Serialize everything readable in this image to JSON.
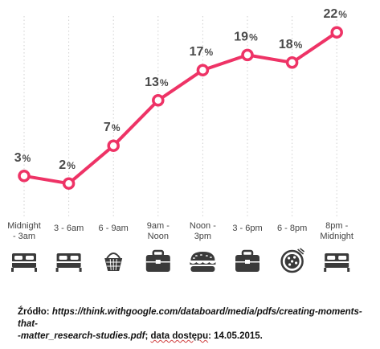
{
  "chart_data": {
    "type": "line",
    "categories": [
      "Midnight - 3am",
      "3 - 6am",
      "6 - 9am",
      "9am - Noon",
      "Noon - 3pm",
      "3 - 6pm",
      "6 - 8pm",
      "8pm - Midnight"
    ],
    "category_lines": [
      [
        "Midnight",
        "- 3am"
      ],
      [
        "3 - 6am"
      ],
      [
        "6 - 9am"
      ],
      [
        "9am -",
        "Noon"
      ],
      [
        "Noon -",
        "3pm"
      ],
      [
        "3 - 6pm"
      ],
      [
        "6 - 8pm"
      ],
      [
        "8pm -",
        "Midnight"
      ]
    ],
    "series": [
      {
        "values": [
          3,
          2,
          7,
          13,
          17,
          19,
          18,
          22
        ]
      }
    ],
    "value_unit": "%",
    "icons": [
      "bed-icon",
      "bed-icon",
      "food-basket-icon",
      "briefcase-icon",
      "sandwich-icon",
      "briefcase-icon",
      "pizza-icon",
      "bed-icon"
    ],
    "title": "",
    "xlabel": "",
    "ylabel": "",
    "grid": "vertical-dotted",
    "colors": {
      "line": "#ee3366",
      "marker_fill": "#ffffff",
      "text": "#4a4a4a",
      "icon": "#3a3a3a",
      "grid": "#d0d0d0"
    }
  },
  "source": {
    "label": "Źródło:",
    "url_line1": "https://think.withgoogle.com/databoard/media/pdfs/creating-moments-that-",
    "url_line2": "-matter_research-studies.pdf",
    "access_label": "data dostępu",
    "access_date": "14.05.2015."
  }
}
